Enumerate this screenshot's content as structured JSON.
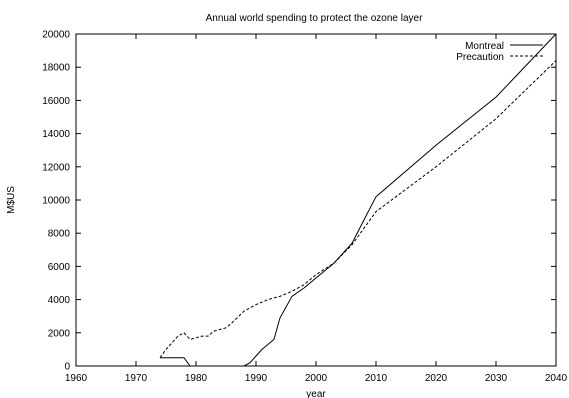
{
  "chart_data": {
    "type": "line",
    "title": "Annual world spending to protect the ozone layer",
    "xlabel": "year",
    "ylabel": "M$US",
    "xlim": [
      1960,
      2040
    ],
    "ylim": [
      0,
      20000
    ],
    "xticks": [
      1960,
      1970,
      1980,
      1990,
      2000,
      2010,
      2020,
      2030,
      2040
    ],
    "yticks": [
      0,
      2000,
      4000,
      6000,
      8000,
      10000,
      12000,
      14000,
      16000,
      18000,
      20000
    ],
    "grid": false,
    "legend_position": "top-right",
    "series": [
      {
        "name": "Montreal",
        "dash": "solid",
        "color": "#000000",
        "x": [
          1974,
          1978,
          1979,
          1988,
          1989,
          1990,
          1991,
          1993,
          1994,
          1996,
          1998,
          2000,
          2003,
          2006,
          2008,
          2010,
          2020,
          2030,
          2040
        ],
        "y": [
          500,
          500,
          0,
          0,
          200,
          600,
          1000,
          1600,
          2900,
          4200,
          4700,
          5300,
          6200,
          7400,
          8800,
          10200,
          13300,
          16200,
          20000
        ]
      },
      {
        "name": "Precaution",
        "dash": "dashed",
        "color": "#000000",
        "x": [
          1974,
          1975,
          1976,
          1977,
          1978,
          1979,
          1980,
          1981,
          1982,
          1983,
          1985,
          1986,
          1988,
          1990,
          1992,
          1994,
          1996,
          1998,
          2000,
          2003,
          2006,
          2008,
          2010,
          2020,
          2030,
          2040
        ],
        "y": [
          500,
          1000,
          1400,
          1800,
          2000,
          1600,
          1700,
          1800,
          1800,
          2100,
          2300,
          2600,
          3300,
          3700,
          4000,
          4200,
          4500,
          4900,
          5500,
          6200,
          7300,
          8300,
          9300,
          12000,
          14900,
          18400
        ]
      }
    ]
  }
}
